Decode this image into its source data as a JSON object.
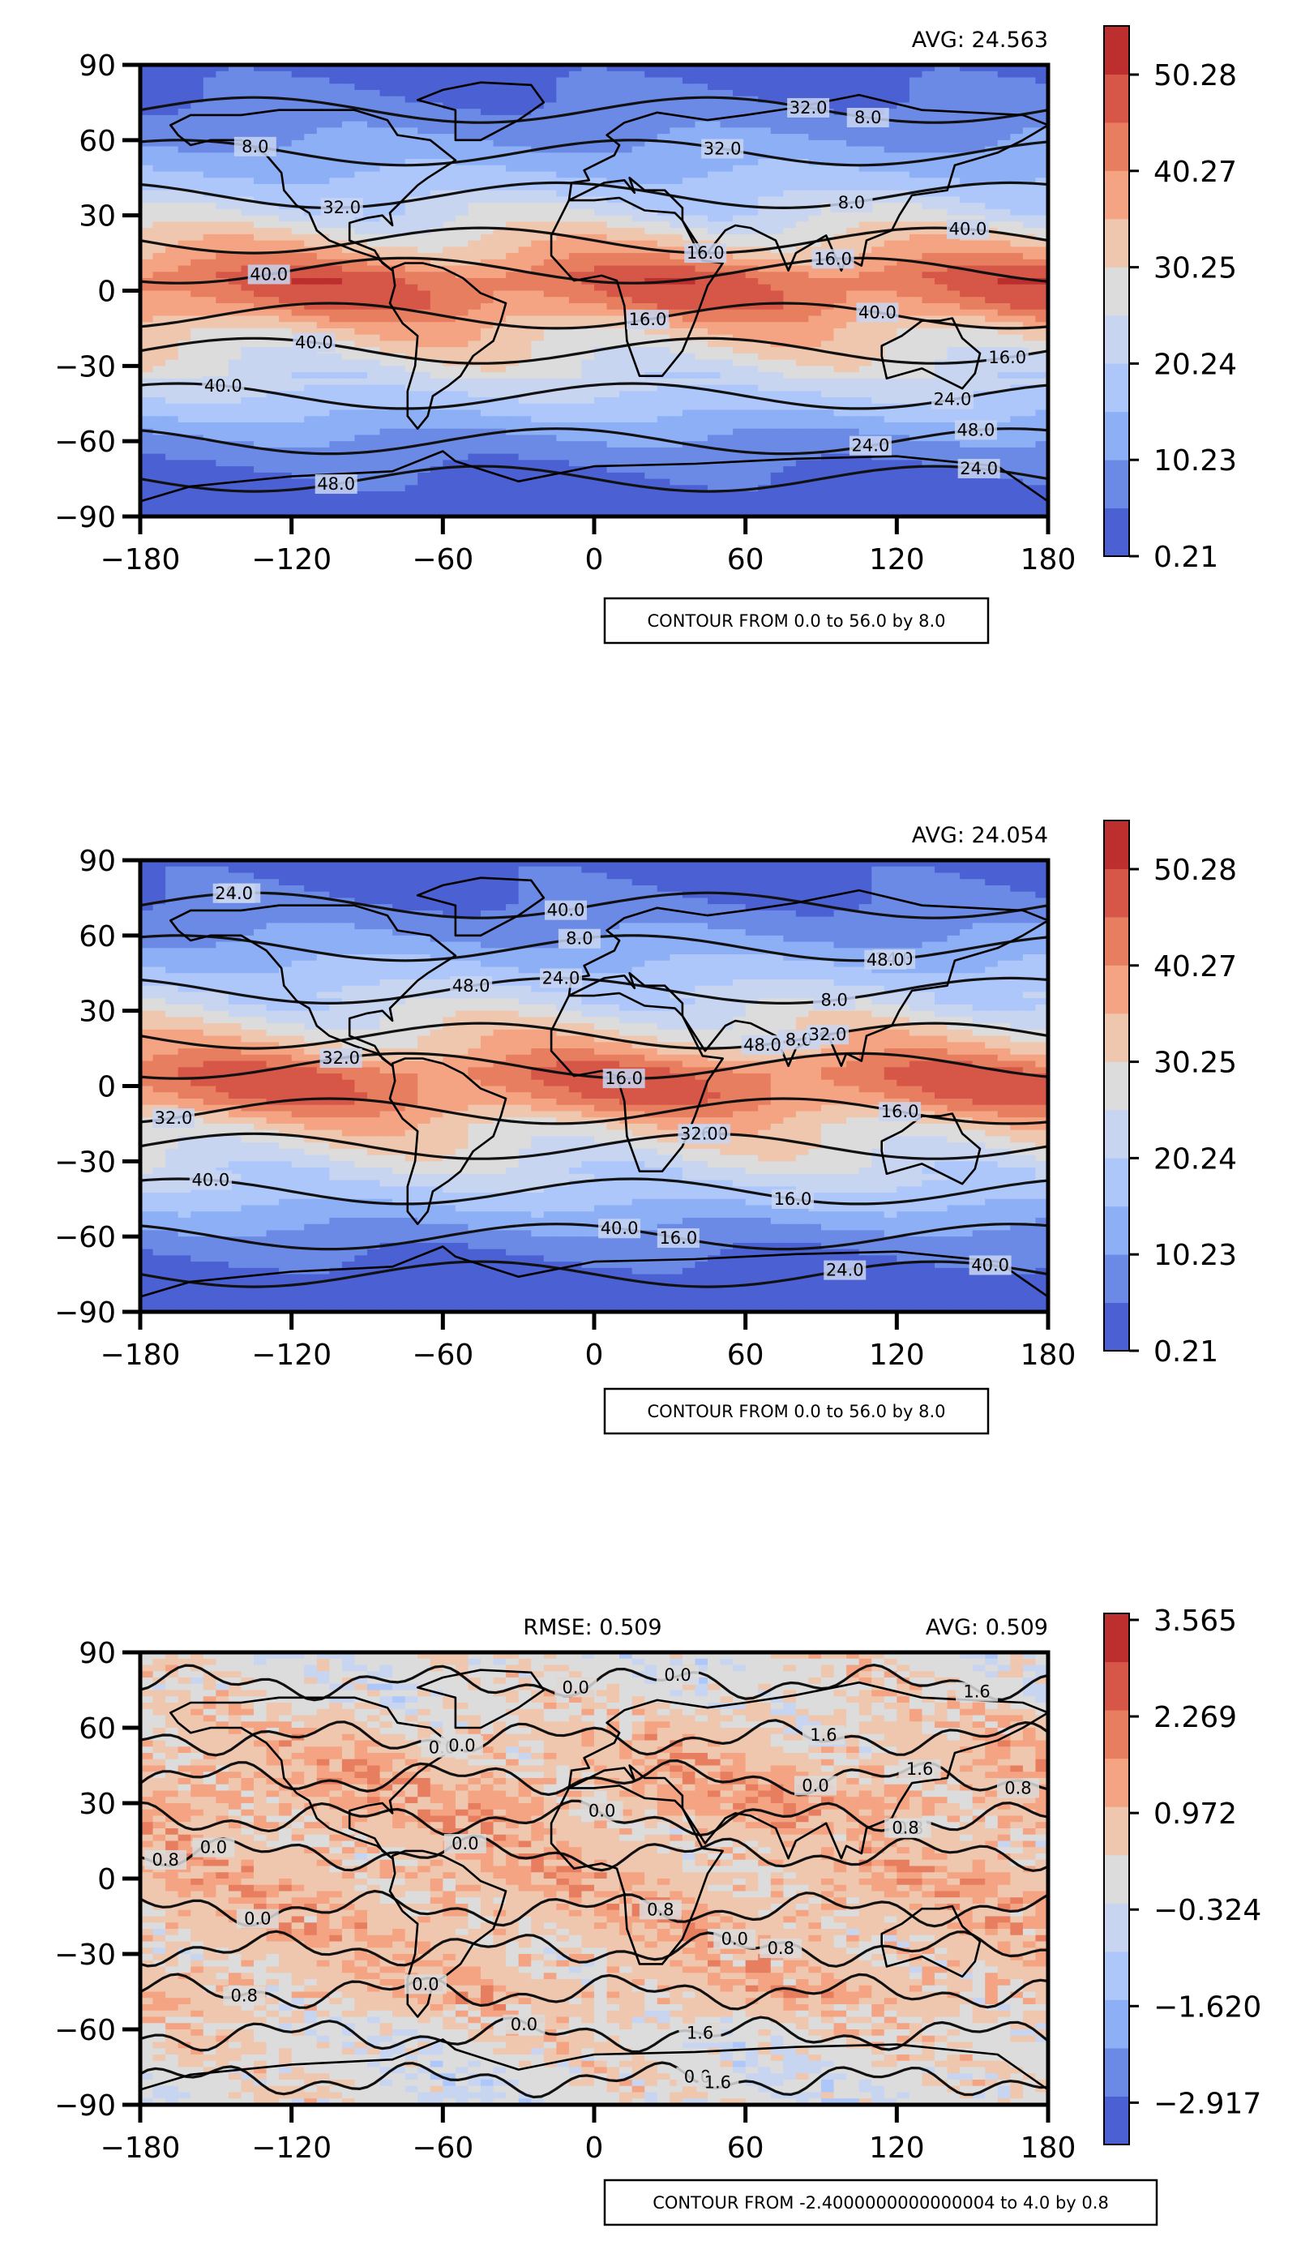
{
  "palette": [
    "#4a60d3",
    "#6a8ae6",
    "#8caff5",
    "#aec7fb",
    "#c8d5f1",
    "#dcdcdc",
    "#efc6ae",
    "#f4a482",
    "#e77e5f",
    "#d65647",
    "#bc2f2e"
  ],
  "chart_data": [
    {
      "type": "heatmap",
      "subtype": "global contour map",
      "xlim": [
        -180,
        180
      ],
      "ylim": [
        -90,
        90
      ],
      "xticks": [
        "−180",
        "−120",
        "−60",
        "0",
        "60",
        "120",
        "180"
      ],
      "yticks": [
        "90",
        "60",
        "30",
        "0",
        "−30",
        "−60",
        "−90"
      ],
      "avg_label": "AVG: 24.563",
      "colorbar_ticks": [
        "50.28",
        "40.27",
        "30.25",
        "20.24",
        "10.23",
        "0.21"
      ],
      "colorbar_range": [
        0.21,
        55.28
      ],
      "contour_note": "CONTOUR FROM 0.0 to 56.0 by 8.0",
      "contour_labels": [
        "8.0",
        "8.0",
        "8.0",
        "16.0",
        "16.0",
        "16.0",
        "16.0",
        "24.0",
        "24.0",
        "24.0",
        "32.0",
        "32.0",
        "32.0",
        "40.0",
        "40.0",
        "40.0",
        "40.0",
        "40.0",
        "48.0",
        "48.0"
      ],
      "bands": [
        {
          "lat": 90,
          "v": 3
        },
        {
          "lat": 75,
          "v": 6
        },
        {
          "lat": 60,
          "v": 10
        },
        {
          "lat": 45,
          "v": 16
        },
        {
          "lat": 30,
          "v": 24
        },
        {
          "lat": 15,
          "v": 36
        },
        {
          "lat": 5,
          "v": 46
        },
        {
          "lat": -5,
          "v": 44
        },
        {
          "lat": -15,
          "v": 34
        },
        {
          "lat": -30,
          "v": 26
        },
        {
          "lat": -45,
          "v": 18
        },
        {
          "lat": -60,
          "v": 9
        },
        {
          "lat": -75,
          "v": 4
        },
        {
          "lat": -90,
          "v": 2
        }
      ]
    },
    {
      "type": "heatmap",
      "subtype": "global contour map",
      "xlim": [
        -180,
        180
      ],
      "ylim": [
        -90,
        90
      ],
      "xticks": [
        "−180",
        "−120",
        "−60",
        "0",
        "60",
        "120",
        "180"
      ],
      "yticks": [
        "90",
        "60",
        "30",
        "0",
        "−30",
        "−60",
        "−90"
      ],
      "avg_label": "AVG: 24.054",
      "colorbar_ticks": [
        "50.28",
        "40.27",
        "30.25",
        "20.24",
        "10.23",
        "0.21"
      ],
      "colorbar_range": [
        0.21,
        55.28
      ],
      "contour_note": "CONTOUR FROM 0.0 to 56.0 by 8.0",
      "contour_labels": [
        "8.0",
        "8.0",
        "8.0",
        "8.0",
        "16.0",
        "16.0",
        "16.0",
        "16.0",
        "16.0",
        "24.0",
        "24.0",
        "24.0",
        "24.0",
        "32.0",
        "32.0",
        "32.0",
        "32.0",
        "40.0",
        "40.0",
        "40.0",
        "40.0",
        "48.0",
        "48.0",
        "48.0"
      ],
      "bands": [
        {
          "lat": 90,
          "v": 3
        },
        {
          "lat": 75,
          "v": 5
        },
        {
          "lat": 60,
          "v": 10
        },
        {
          "lat": 45,
          "v": 17
        },
        {
          "lat": 30,
          "v": 25
        },
        {
          "lat": 15,
          "v": 35
        },
        {
          "lat": 5,
          "v": 45
        },
        {
          "lat": -5,
          "v": 43
        },
        {
          "lat": -15,
          "v": 33
        },
        {
          "lat": -30,
          "v": 25
        },
        {
          "lat": -45,
          "v": 17
        },
        {
          "lat": -60,
          "v": 8
        },
        {
          "lat": -75,
          "v": 3
        },
        {
          "lat": -90,
          "v": 2
        }
      ]
    },
    {
      "type": "heatmap",
      "subtype": "global difference contour map",
      "xlim": [
        -180,
        180
      ],
      "ylim": [
        -90,
        90
      ],
      "xticks": [
        "−180",
        "−120",
        "−60",
        "0",
        "60",
        "120",
        "180"
      ],
      "yticks": [
        "90",
        "60",
        "30",
        "0",
        "−30",
        "−60",
        "−90"
      ],
      "rmse_label": "RMSE: 0.509",
      "avg_label": "AVG: 0.509",
      "colorbar_ticks": [
        "3.565",
        "2.269",
        "0.972",
        "−0.324",
        "−1.620",
        "−2.917"
      ],
      "colorbar_range": [
        -3.565,
        3.565
      ],
      "contour_note": "CONTOUR FROM -2.4000000000000004 to 4.0 by 0.8",
      "contour_labels": [
        "0.0",
        "0.0",
        "0.0",
        "0.0",
        "0.0",
        "0.0",
        "0.0",
        "0.0",
        "0.0",
        "0.0",
        "0.0",
        "0.0",
        "0.8",
        "0.8",
        "0.8",
        "0.8",
        "0.8",
        "0.8",
        "1.6",
        "1.6",
        "1.6",
        "1.6",
        "1.6",
        "0.8",
        "0.0"
      ],
      "bands": [
        {
          "lat": 90,
          "v": 0.0
        },
        {
          "lat": 75,
          "v": 0.1
        },
        {
          "lat": 60,
          "v": 0.5
        },
        {
          "lat": 45,
          "v": 0.9
        },
        {
          "lat": 30,
          "v": 1.1
        },
        {
          "lat": 15,
          "v": 0.7
        },
        {
          "lat": 0,
          "v": 0.9
        },
        {
          "lat": -15,
          "v": 0.8
        },
        {
          "lat": -30,
          "v": 0.7
        },
        {
          "lat": -45,
          "v": 0.8
        },
        {
          "lat": -60,
          "v": 0.2
        },
        {
          "lat": -75,
          "v": 0.0
        },
        {
          "lat": -90,
          "v": 0.0
        }
      ]
    }
  ]
}
